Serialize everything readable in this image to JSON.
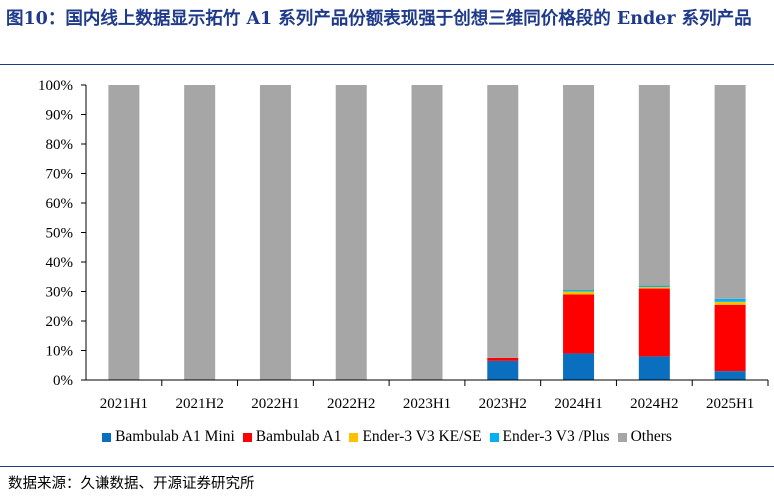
{
  "title": "图10：国内线上数据显示拓竹 A1 系列产品份额表现强于创想三维同价格段的 Ender 系列产品",
  "source": "数据来源：久谦数据、开源证券研究所",
  "chart_data": {
    "type": "bar",
    "stacked": true,
    "categories": [
      "2021H1",
      "2021H2",
      "2022H1",
      "2022H2",
      "2023H1",
      "2023H2",
      "2024H1",
      "2024H2",
      "2025H1"
    ],
    "series": [
      {
        "name": "Bambulab A1 Mini",
        "color": "#0a6fbf",
        "values": [
          0,
          0,
          0,
          0,
          0,
          6.5,
          9,
          8,
          3
        ]
      },
      {
        "name": "Bambulab A1",
        "color": "#ff0000",
        "values": [
          0,
          0,
          0,
          0,
          0,
          1,
          20,
          23,
          22.5
        ]
      },
      {
        "name": "Ender-3 V3 KE/SE",
        "color": "#ffc000",
        "values": [
          0,
          0,
          0,
          0,
          0,
          0,
          1,
          0.5,
          1
        ]
      },
      {
        "name": "Ender-3 V3 /Plus",
        "color": "#00b0f0",
        "values": [
          0,
          0,
          0,
          0,
          0,
          0,
          0.5,
          0.5,
          1
        ]
      },
      {
        "name": "Others",
        "color": "#a6a6a6",
        "values": [
          100,
          100,
          100,
          100,
          100,
          92.5,
          69.5,
          68,
          72.5
        ]
      }
    ],
    "yticks": [
      "0%",
      "10%",
      "20%",
      "30%",
      "40%",
      "50%",
      "60%",
      "70%",
      "80%",
      "90%",
      "100%"
    ],
    "ylim": [
      0,
      100
    ],
    "legend_position": "bottom",
    "grid": false
  }
}
